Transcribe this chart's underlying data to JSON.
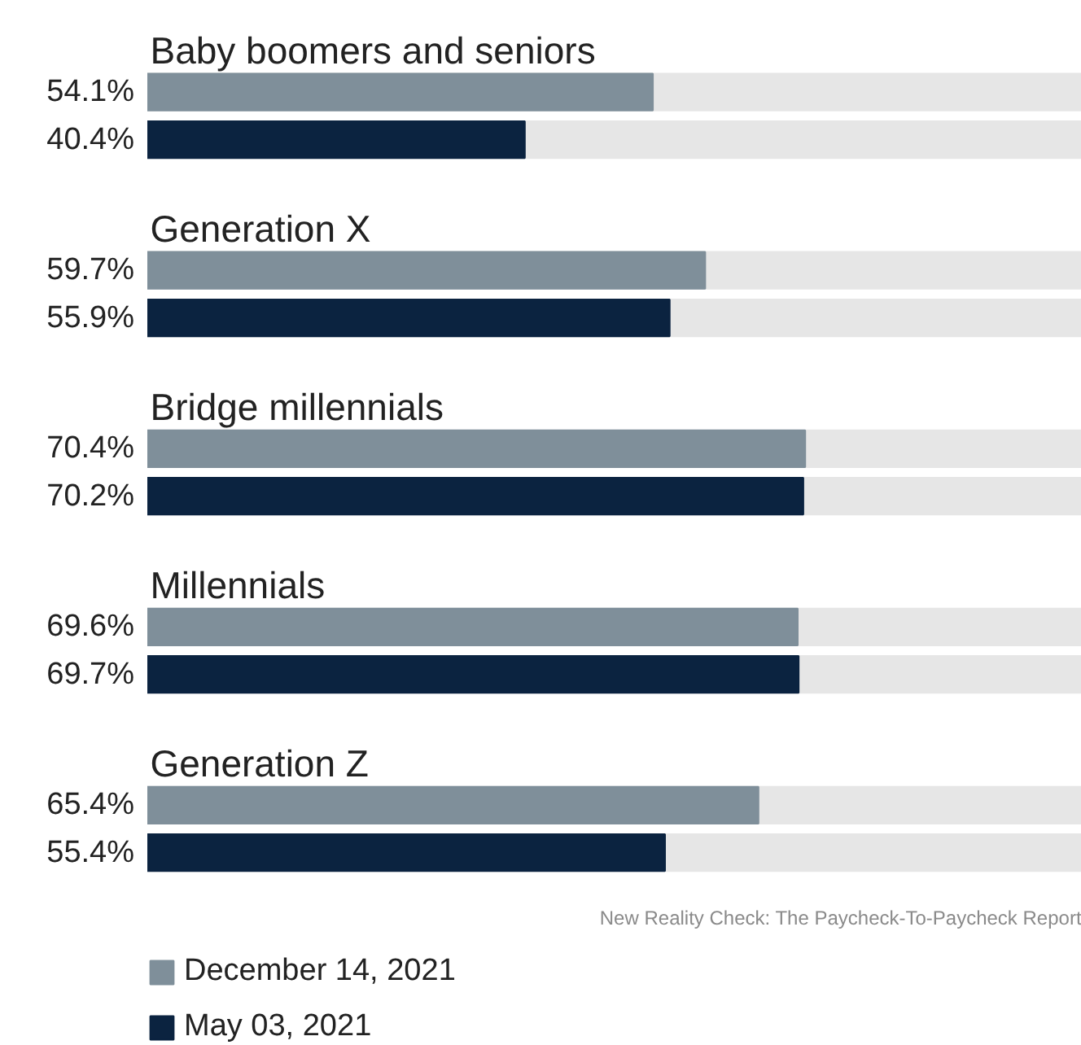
{
  "chart_data": {
    "type": "bar",
    "orientation": "horizontal",
    "categories": [
      "Baby boomers and seniors",
      "Generation X",
      "Bridge millennials",
      "Millennials",
      "Generation Z"
    ],
    "series": [
      {
        "name": "December 14, 2021",
        "color": "#7f8f9a",
        "values": [
          54.1,
          59.7,
          70.4,
          69.6,
          65.4
        ],
        "value_labels": [
          "54.1%",
          "59.7%",
          "70.4%",
          "69.6%",
          "65.4%"
        ]
      },
      {
        "name": "May 03, 2021",
        "color": "#0b2340",
        "values": [
          40.4,
          55.9,
          70.2,
          69.7,
          55.4
        ],
        "value_labels": [
          "40.4%",
          "55.9%",
          "70.2%",
          "69.7%",
          "55.4%"
        ]
      }
    ],
    "xlim": [
      0,
      100
    ],
    "tick_labels": false,
    "grid": false,
    "legend": "bottom left",
    "annotations": [
      "New Reality Check: The Paycheck-To-Paycheck Report"
    ]
  }
}
